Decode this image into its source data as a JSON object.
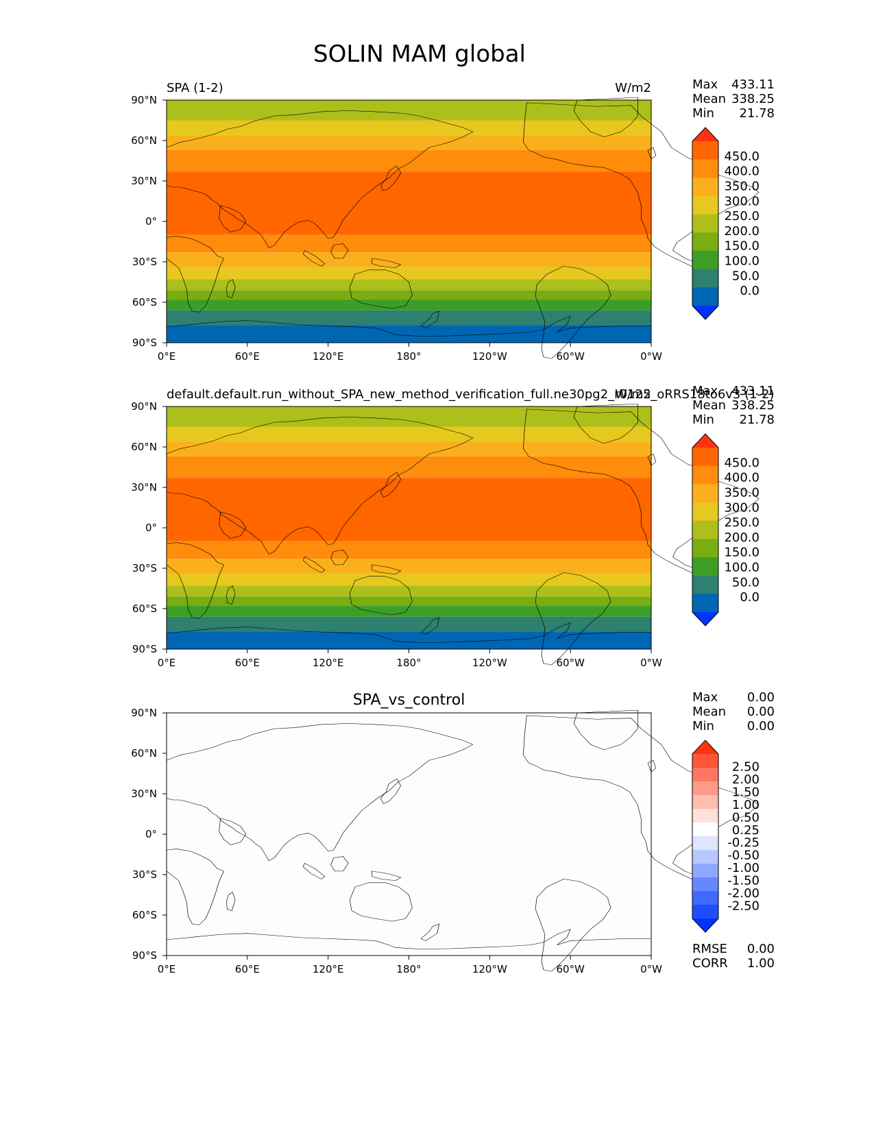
{
  "title": "SOLIN MAM global",
  "chart_data": [
    {
      "type": "heatmap",
      "panel": "test",
      "title_left": "SPA (1-2)",
      "title_center": "",
      "title_right": "W/m2",
      "stats": [
        {
          "label": "Max",
          "value": "433.11"
        },
        {
          "label": "Mean",
          "value": "338.25"
        },
        {
          "label": "Min",
          "value": "21.78"
        }
      ],
      "xtick_labels": [
        "0°E",
        "60°E",
        "120°E",
        "180°",
        "120°W",
        "60°W",
        "0°W"
      ],
      "ytick_labels": [
        "90°N",
        "60°N",
        "30°N",
        "0°",
        "30°S",
        "60°S",
        "90°S"
      ],
      "xlim": [
        0,
        360
      ],
      "ylim": [
        -90,
        90
      ],
      "colorbar": {
        "levels": [
          "450.0",
          "400.0",
          "350.0",
          "300.0",
          "250.0",
          "200.0",
          "150.0",
          "100.0",
          "50.0",
          "0.0"
        ],
        "colors": [
          "#0033ff",
          "#0066b3",
          "#2e8070",
          "#3d9e26",
          "#7aad12",
          "#adbf1a",
          "#e6c81f",
          "#fab01c",
          "#ff8c0a",
          "#ff6600",
          "#ff3311"
        ]
      },
      "lat_bands": [
        {
          "lat_from": 90,
          "lat_to": 75,
          "color": "#adbf1a"
        },
        {
          "lat_from": 75,
          "lat_to": 64,
          "color": "#e6c81f"
        },
        {
          "lat_from": 64,
          "lat_to": 53,
          "color": "#fab01c"
        },
        {
          "lat_from": 53,
          "lat_to": 37,
          "color": "#ff8c0a"
        },
        {
          "lat_from": 37,
          "lat_to": -10,
          "color": "#ff6600"
        },
        {
          "lat_from": -10,
          "lat_to": -23,
          "color": "#ff8c0a"
        },
        {
          "lat_from": -23,
          "lat_to": -34,
          "color": "#fab01c"
        },
        {
          "lat_from": -34,
          "lat_to": -43,
          "color": "#e6c81f"
        },
        {
          "lat_from": -43,
          "lat_to": -51,
          "color": "#adbf1a"
        },
        {
          "lat_from": -51,
          "lat_to": -58,
          "color": "#7aad12"
        },
        {
          "lat_from": -58,
          "lat_to": -66,
          "color": "#3d9e26"
        },
        {
          "lat_from": -66,
          "lat_to": -77,
          "color": "#2e8070"
        },
        {
          "lat_from": -77,
          "lat_to": -90,
          "color": "#0066b3"
        }
      ]
    },
    {
      "type": "heatmap",
      "panel": "reference",
      "title_left": "default.default.run_without_SPA_new_method_verification_full.ne30pg2_r0125_oRRS18to6v3 (1-2)",
      "title_center": "",
      "title_right": "W/m2",
      "stats": [
        {
          "label": "Max",
          "value": "433.11"
        },
        {
          "label": "Mean",
          "value": "338.25"
        },
        {
          "label": "Min",
          "value": "21.78"
        }
      ],
      "xtick_labels": [
        "0°E",
        "60°E",
        "120°E",
        "180°",
        "120°W",
        "60°W",
        "0°W"
      ],
      "ytick_labels": [
        "90°N",
        "60°N",
        "30°N",
        "0°",
        "30°S",
        "60°S",
        "90°S"
      ],
      "xlim": [
        0,
        360
      ],
      "ylim": [
        -90,
        90
      ],
      "colorbar": {
        "levels": [
          "450.0",
          "400.0",
          "350.0",
          "300.0",
          "250.0",
          "200.0",
          "150.0",
          "100.0",
          "50.0",
          "0.0"
        ],
        "colors": [
          "#0033ff",
          "#0066b3",
          "#2e8070",
          "#3d9e26",
          "#7aad12",
          "#adbf1a",
          "#e6c81f",
          "#fab01c",
          "#ff8c0a",
          "#ff6600",
          "#ff3311"
        ]
      },
      "lat_bands": [
        {
          "lat_from": 90,
          "lat_to": 75,
          "color": "#adbf1a"
        },
        {
          "lat_from": 75,
          "lat_to": 64,
          "color": "#e6c81f"
        },
        {
          "lat_from": 64,
          "lat_to": 53,
          "color": "#fab01c"
        },
        {
          "lat_from": 53,
          "lat_to": 37,
          "color": "#ff8c0a"
        },
        {
          "lat_from": 37,
          "lat_to": -10,
          "color": "#ff6600"
        },
        {
          "lat_from": -10,
          "lat_to": -23,
          "color": "#ff8c0a"
        },
        {
          "lat_from": -23,
          "lat_to": -34,
          "color": "#fab01c"
        },
        {
          "lat_from": -34,
          "lat_to": -43,
          "color": "#e6c81f"
        },
        {
          "lat_from": -43,
          "lat_to": -51,
          "color": "#adbf1a"
        },
        {
          "lat_from": -51,
          "lat_to": -58,
          "color": "#7aad12"
        },
        {
          "lat_from": -58,
          "lat_to": -66,
          "color": "#3d9e26"
        },
        {
          "lat_from": -66,
          "lat_to": -77,
          "color": "#2e8070"
        },
        {
          "lat_from": -77,
          "lat_to": -90,
          "color": "#0066b3"
        }
      ]
    },
    {
      "type": "heatmap",
      "panel": "difference",
      "title_left": "",
      "title_center": "SPA_vs_control",
      "title_right": "",
      "stats": [
        {
          "label": "Max",
          "value": "0.00"
        },
        {
          "label": "Mean",
          "value": "0.00"
        },
        {
          "label": "Min",
          "value": "0.00"
        }
      ],
      "extra_stats": [
        {
          "label": "RMSE",
          "value": "0.00"
        },
        {
          "label": "CORR",
          "value": "1.00"
        }
      ],
      "xtick_labels": [
        "0°E",
        "60°E",
        "120°E",
        "180°",
        "120°W",
        "60°W",
        "0°W"
      ],
      "ytick_labels": [
        "90°N",
        "60°N",
        "30°N",
        "0°",
        "30°S",
        "60°S",
        "90°S"
      ],
      "xlim": [
        0,
        360
      ],
      "ylim": [
        -90,
        90
      ],
      "colorbar": {
        "levels": [
          "2.50",
          "2.00",
          "1.50",
          "1.00",
          "0.50",
          "0.25",
          "-0.25",
          "-0.50",
          "-1.00",
          "-1.50",
          "-2.00",
          "-2.50"
        ],
        "colors": [
          "#0033ff",
          "#1f4dff",
          "#4069ff",
          "#6688ff",
          "#8fa8ff",
          "#b8c8ff",
          "#dde5ff",
          "#ffffff",
          "#ffe0da",
          "#ffbdb0",
          "#ff9a88",
          "#ff7560",
          "#ff5538",
          "#ff3311"
        ]
      },
      "lat_bands": [
        {
          "lat_from": 90,
          "lat_to": -90,
          "color": "#fdfdfd"
        }
      ]
    }
  ]
}
